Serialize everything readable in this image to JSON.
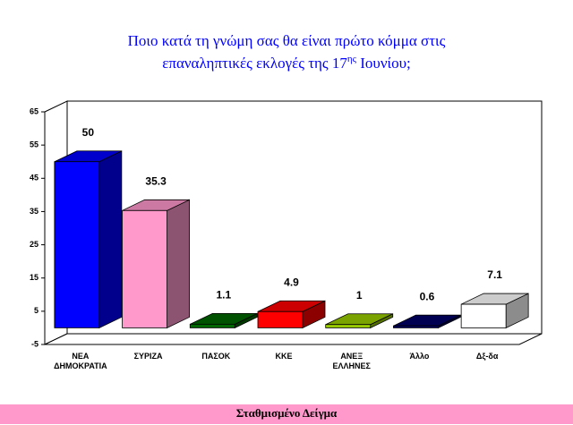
{
  "chart_data": {
    "type": "bar3d",
    "title": [
      "Ποιο κατά τη γνώμη σας θα είναι πρώτο κόμμα στις",
      "επαναληπτικές εκλογές της 17",
      "ης",
      " Ιουνίου;"
    ],
    "categories": [
      [
        "ΝΕΑ",
        "ΔΗΜΟΚΡΑΤΙΑ"
      ],
      [
        "ΣΥΡΙΖΑ"
      ],
      [
        "ΠΑΣΟΚ"
      ],
      [
        "ΚΚΕ"
      ],
      [
        "ΑΝΕΞ",
        "ΕΛΛΗΝΕΣ"
      ],
      [
        "Άλλο"
      ],
      [
        "Δξ-δα"
      ]
    ],
    "values": [
      50,
      35.3,
      1.1,
      4.9,
      1,
      0.6,
      7.1
    ],
    "colors": [
      "#0000ff",
      "#ff99cc",
      "#006600",
      "#ff0000",
      "#99cc00",
      "#000066",
      "#ffffff"
    ],
    "ylim": [
      -5,
      65
    ],
    "yticks": [
      -5,
      5,
      15,
      25,
      35,
      45,
      55,
      65
    ],
    "footer": "Σταθμισμένο Δείγμα"
  }
}
